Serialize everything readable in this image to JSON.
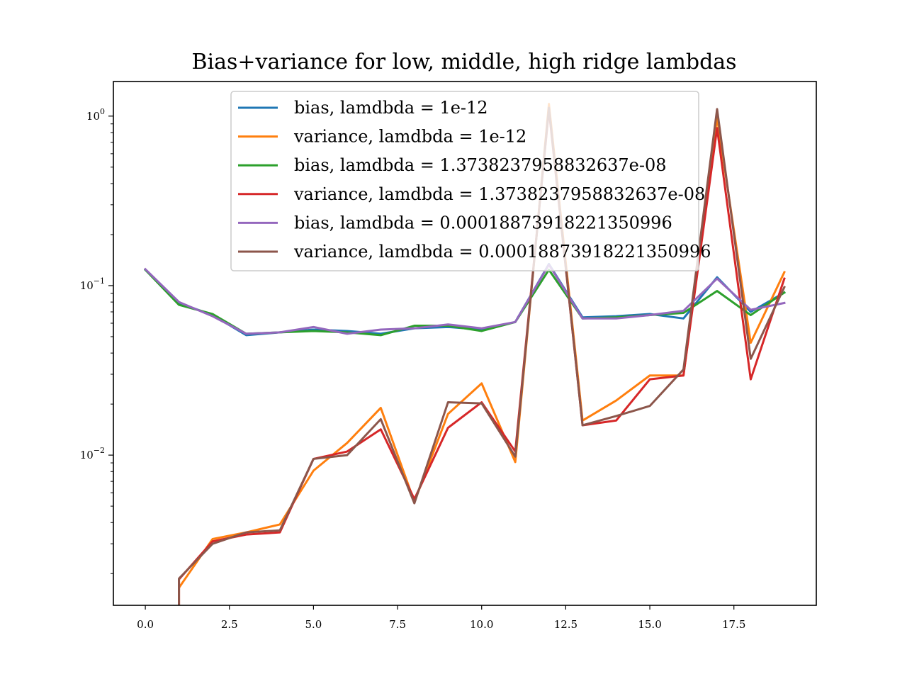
{
  "chart_data": {
    "type": "line",
    "title": "Bias+variance for low, middle, high ridge lambdas",
    "xlabel": "",
    "ylabel": "",
    "x": [
      0,
      1,
      2,
      3,
      4,
      5,
      6,
      7,
      8,
      9,
      10,
      11,
      12,
      13,
      14,
      15,
      16,
      17,
      18,
      19
    ],
    "xlim": [
      -0.95,
      19.95
    ],
    "ylim": [
      0.0013,
      1.6
    ],
    "yscale": "log",
    "grid": false,
    "legend_position": "top-center",
    "x_ticks": [
      0,
      2.5,
      5,
      7.5,
      10,
      12.5,
      15,
      17.5
    ],
    "x_tick_labels": [
      "0.0",
      "2.5",
      "5.0",
      "7.5",
      "10.0",
      "12.5",
      "15.0",
      "17.5"
    ],
    "y_ticks": [
      1,
      0.1,
      0.01
    ],
    "y_tick_labels": [
      {
        "base": "10",
        "exp": "0"
      },
      {
        "base": "10",
        "exp": "−1"
      },
      {
        "base": "10",
        "exp": "−2"
      }
    ],
    "series": [
      {
        "name": "bias, lamdbda = 1e-12",
        "color": "#1f77b4",
        "values": [
          0.124,
          0.079,
          0.067,
          0.051,
          0.053,
          0.055,
          0.054,
          0.052,
          0.056,
          0.057,
          0.055,
          0.061,
          0.134,
          0.065,
          0.066,
          0.068,
          0.064,
          0.112,
          0.07,
          0.091
        ]
      },
      {
        "name": "variance, lamdbda = 1e-12",
        "color": "#ff7f0e",
        "values": [
          null,
          0.00165,
          0.0032,
          0.0035,
          0.0039,
          0.0081,
          0.0118,
          0.019,
          0.0053,
          0.0175,
          0.0265,
          0.0091,
          1.18,
          0.016,
          0.021,
          0.0295,
          0.0295,
          0.98,
          0.046,
          0.12
        ]
      },
      {
        "name": "bias, lamdbda = 1.3738237958832637e-08",
        "color": "#2ca02c",
        "values": [
          0.124,
          0.077,
          0.068,
          0.052,
          0.053,
          0.054,
          0.053,
          0.051,
          0.058,
          0.058,
          0.054,
          0.061,
          0.124,
          0.064,
          0.065,
          0.067,
          0.069,
          0.093,
          0.067,
          0.091
        ]
      },
      {
        "name": "variance, lamdbda = 1.3738237958832637e-08",
        "color": "#d62728",
        "values": [
          null,
          0.00185,
          0.0031,
          0.0034,
          0.0035,
          0.0095,
          0.0105,
          0.0142,
          0.0055,
          0.0145,
          0.0205,
          0.0105,
          1.09,
          0.015,
          0.016,
          0.028,
          0.0295,
          0.85,
          0.028,
          0.11
        ]
      },
      {
        "name": "bias, lamdbda = 0.00018873918221350996",
        "color": "#9467bd",
        "values": [
          0.125,
          0.08,
          0.066,
          0.052,
          0.053,
          0.057,
          0.052,
          0.055,
          0.056,
          0.059,
          0.056,
          0.061,
          0.133,
          0.064,
          0.064,
          0.067,
          0.071,
          0.11,
          0.072,
          0.079
        ]
      },
      {
        "name": "variance, lamdbda = 0.00018873918221350996",
        "color": "#8c564b",
        "values": [
          null,
          0.00187,
          0.003,
          0.0035,
          0.0036,
          0.0095,
          0.01,
          0.0163,
          0.0052,
          0.0205,
          0.0202,
          0.0098,
          1.12,
          0.015,
          0.017,
          0.0195,
          0.032,
          1.1,
          0.037,
          0.098
        ]
      }
    ]
  }
}
